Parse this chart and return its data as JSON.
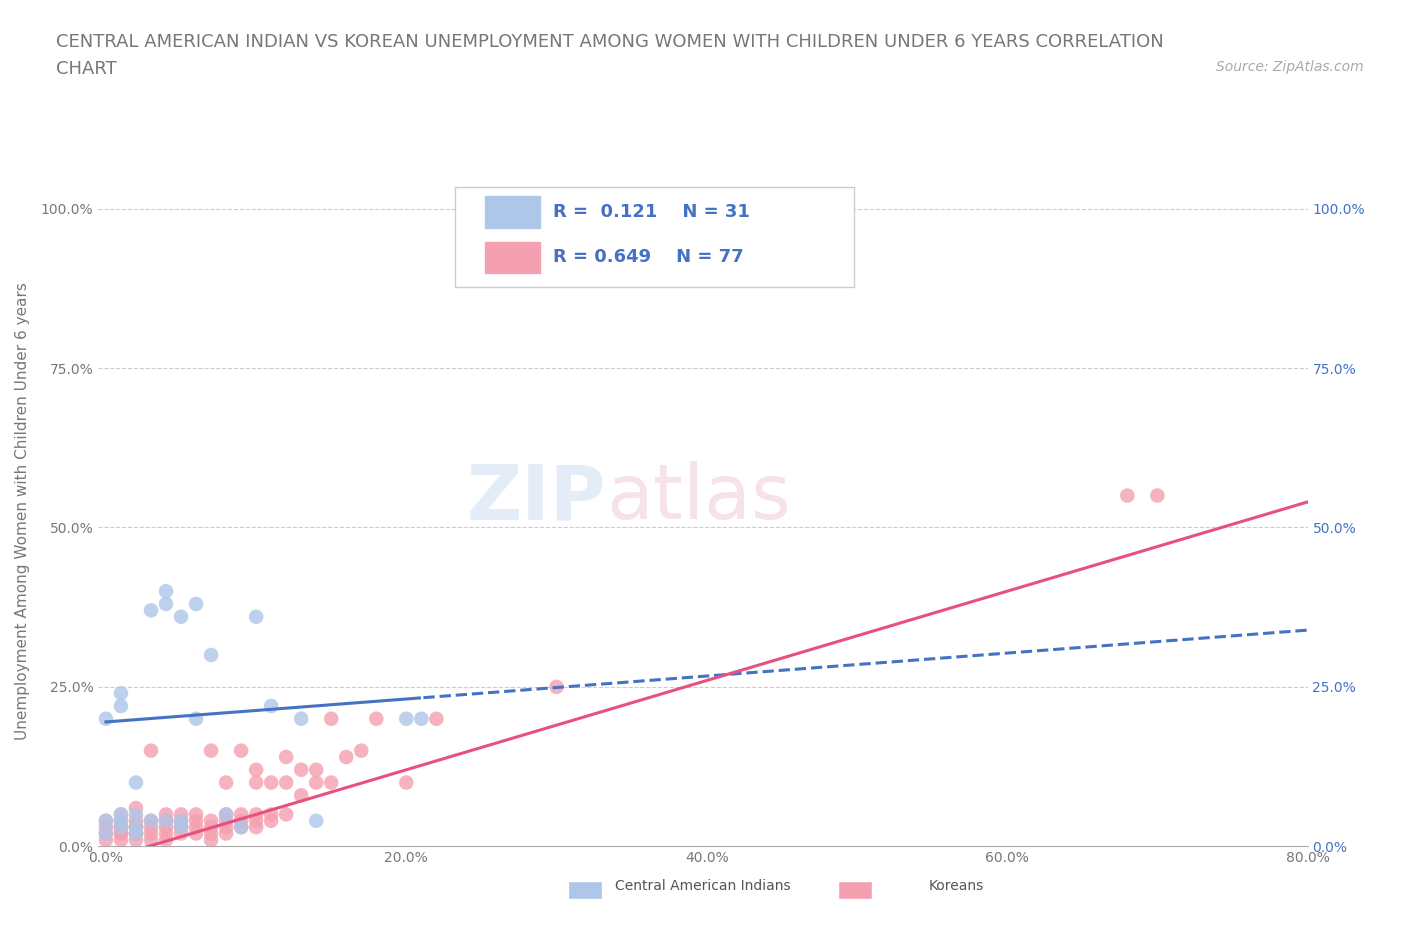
{
  "title_line1": "CENTRAL AMERICAN INDIAN VS KOREAN UNEMPLOYMENT AMONG WOMEN WITH CHILDREN UNDER 6 YEARS CORRELATION",
  "title_line2": "CHART",
  "source": "Source: ZipAtlas.com",
  "ylabel": "Unemployment Among Women with Children Under 6 years",
  "xlim": [
    0.0,
    0.8
  ],
  "ylim": [
    0.0,
    1.05
  ],
  "xticks": [
    0.0,
    0.2,
    0.4,
    0.6,
    0.8
  ],
  "xticklabels": [
    "0.0%",
    "20.0%",
    "40.0%",
    "60.0%",
    "80.0%"
  ],
  "yticks": [
    0.0,
    0.25,
    0.5,
    0.75,
    1.0
  ],
  "yticklabels": [
    "0.0%",
    "25.0%",
    "50.0%",
    "75.0%",
    "100.0%"
  ],
  "group1_name": "Central American Indians",
  "group1_color": "#aec6e8",
  "group1_R": 0.121,
  "group1_N": 31,
  "group1_x": [
    0.0,
    0.0,
    0.0,
    0.01,
    0.01,
    0.01,
    0.01,
    0.01,
    0.02,
    0.02,
    0.02,
    0.02,
    0.03,
    0.03,
    0.04,
    0.04,
    0.04,
    0.05,
    0.05,
    0.05,
    0.06,
    0.06,
    0.07,
    0.08,
    0.09,
    0.1,
    0.11,
    0.13,
    0.14,
    0.2,
    0.21
  ],
  "group1_y": [
    0.02,
    0.04,
    0.2,
    0.03,
    0.04,
    0.05,
    0.22,
    0.24,
    0.02,
    0.03,
    0.05,
    0.1,
    0.04,
    0.37,
    0.04,
    0.38,
    0.4,
    0.03,
    0.04,
    0.36,
    0.2,
    0.38,
    0.3,
    0.05,
    0.03,
    0.36,
    0.22,
    0.2,
    0.04,
    0.2,
    0.2
  ],
  "group2_name": "Koreans",
  "group2_color": "#f4a0b0",
  "group2_R": 0.649,
  "group2_N": 77,
  "group2_x": [
    0.0,
    0.0,
    0.0,
    0.0,
    0.01,
    0.01,
    0.01,
    0.01,
    0.01,
    0.01,
    0.01,
    0.02,
    0.02,
    0.02,
    0.02,
    0.02,
    0.02,
    0.02,
    0.03,
    0.03,
    0.03,
    0.03,
    0.03,
    0.04,
    0.04,
    0.04,
    0.04,
    0.04,
    0.04,
    0.05,
    0.05,
    0.05,
    0.05,
    0.05,
    0.06,
    0.06,
    0.06,
    0.06,
    0.07,
    0.07,
    0.07,
    0.07,
    0.07,
    0.08,
    0.08,
    0.08,
    0.08,
    0.08,
    0.09,
    0.09,
    0.09,
    0.09,
    0.1,
    0.1,
    0.1,
    0.1,
    0.1,
    0.11,
    0.11,
    0.11,
    0.12,
    0.12,
    0.12,
    0.13,
    0.13,
    0.14,
    0.14,
    0.15,
    0.15,
    0.16,
    0.17,
    0.18,
    0.2,
    0.22,
    0.3,
    0.68,
    0.7
  ],
  "group2_y": [
    0.01,
    0.02,
    0.03,
    0.04,
    0.01,
    0.02,
    0.02,
    0.03,
    0.03,
    0.04,
    0.05,
    0.01,
    0.02,
    0.02,
    0.03,
    0.03,
    0.04,
    0.06,
    0.01,
    0.02,
    0.03,
    0.04,
    0.15,
    0.01,
    0.02,
    0.03,
    0.04,
    0.04,
    0.05,
    0.02,
    0.03,
    0.03,
    0.04,
    0.05,
    0.02,
    0.03,
    0.04,
    0.05,
    0.01,
    0.02,
    0.03,
    0.04,
    0.15,
    0.02,
    0.03,
    0.04,
    0.05,
    0.1,
    0.03,
    0.04,
    0.05,
    0.15,
    0.03,
    0.04,
    0.05,
    0.1,
    0.12,
    0.04,
    0.05,
    0.1,
    0.05,
    0.1,
    0.14,
    0.08,
    0.12,
    0.1,
    0.12,
    0.1,
    0.2,
    0.14,
    0.15,
    0.2,
    0.1,
    0.2,
    0.25,
    0.55,
    0.55
  ],
  "trend1_color": "#4472c4",
  "trend2_color": "#e85080",
  "trend1_intercept": 0.195,
  "trend1_slope": 0.18,
  "trend2_intercept": -0.02,
  "trend2_slope": 0.7,
  "background_color": "#ffffff",
  "watermark_zip": "ZIP",
  "watermark_atlas": "atlas",
  "title_fontsize": 13,
  "source_fontsize": 10,
  "tick_fontsize": 10,
  "legend_fontsize": 13,
  "ylabel_fontsize": 11
}
